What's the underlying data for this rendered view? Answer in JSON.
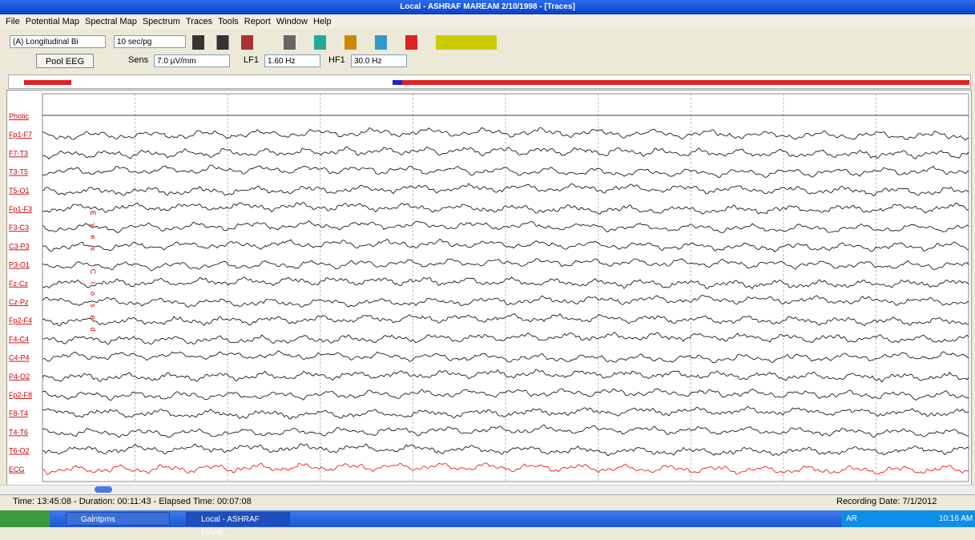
{
  "window": {
    "title": "Local - ASHRAF MAREAM 2/10/1998 - [Traces]"
  },
  "menu": [
    "File",
    "Potential Map",
    "Spectral Map",
    "Spectrum",
    "Traces",
    "Tools",
    "Report",
    "Window",
    "Help"
  ],
  "toolbar": {
    "montage": "(A) Longitudinal Bi",
    "page_speed": "10 sec/pg",
    "pool": "Pool EEG",
    "sens_label": "Sens",
    "sens": "7.0 µV/mm",
    "lf_label": "LF1",
    "lf": "1.60 Hz",
    "hf_label": "HF1",
    "hf": "30.0 Hz"
  },
  "channels": [
    "Photic",
    "Fp1-F7",
    "F7-T3",
    "T3-T5",
    "T5-O1",
    "Fp1-F3",
    "F3-C3",
    "C3-P3",
    "P3-O1",
    "Fz-Cz",
    "Cz-Pz",
    "Fp2-F4",
    "F4-C4",
    "C4-P4",
    "P4-O2",
    "Fp2-F8",
    "F8-T4",
    "T4-T6",
    "T6-O2",
    "ECG"
  ],
  "annotation": "Eyes Closed",
  "status": {
    "time": "Time: 13:45:08  - Duration: 00:11:43 - Elapsed Time: 00:07:08",
    "recording_date": "Recording Date: 7/1/2012"
  },
  "taskbar": {
    "item1": "Galntpms",
    "item2": "Local - ASHRAF MARE...",
    "lang": "AR",
    "clock": "10:16 AM"
  }
}
